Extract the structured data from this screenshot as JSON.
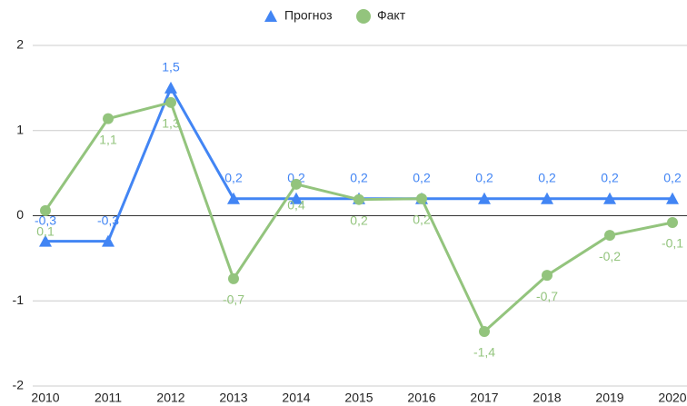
{
  "chart_data": {
    "type": "line",
    "categories": [
      "2010",
      "2011",
      "2012",
      "2013",
      "2014",
      "2015",
      "2016",
      "2017",
      "2018",
      "2019",
      "2020"
    ],
    "series": [
      {
        "name": "Прогноз",
        "color": "#4285f4",
        "marker": "triangle",
        "values": [
          -0.3,
          -0.3,
          1.5,
          0.2,
          0.2,
          0.2,
          0.2,
          0.2,
          0.2,
          0.2,
          0.2
        ],
        "value_labels": [
          "-0,3",
          "-0,3",
          "1,5",
          "0,2",
          "0,2",
          "0,2",
          "0,2",
          "0,2",
          "0,2",
          "0,2",
          "0,2"
        ]
      },
      {
        "name": "Факт",
        "color": "#93c47d",
        "marker": "circle",
        "values": [
          0.06,
          1.14,
          1.33,
          -0.74,
          0.37,
          0.19,
          0.2,
          -1.36,
          -0.7,
          -0.23,
          -0.08
        ],
        "value_labels": [
          "0,1",
          "1,1",
          "1,3",
          "-0,7",
          "0,4",
          "0,2",
          "0,2",
          "-1,4",
          "-0,7",
          "-0,2",
          "-0,1"
        ]
      }
    ],
    "ylim": [
      -2,
      2
    ],
    "yticks": [
      -2,
      -1,
      0,
      1,
      2
    ],
    "grid": true,
    "legend": "top"
  }
}
